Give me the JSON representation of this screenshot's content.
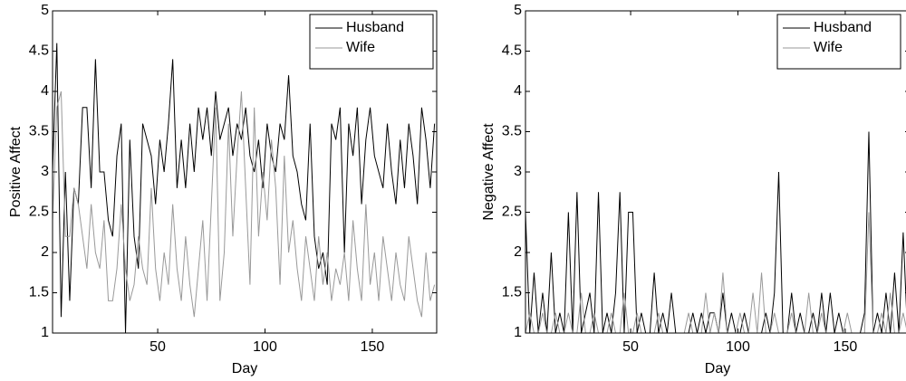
{
  "chart_data": [
    {
      "type": "line",
      "xlabel": "Day",
      "ylabel": "Positive Affect",
      "x": [
        1,
        3,
        5,
        7,
        9,
        11,
        13,
        15,
        17,
        19,
        21,
        23,
        25,
        27,
        29,
        31,
        33,
        35,
        37,
        39,
        41,
        43,
        45,
        47,
        49,
        51,
        53,
        55,
        57,
        59,
        61,
        63,
        65,
        67,
        69,
        71,
        73,
        75,
        77,
        79,
        81,
        83,
        85,
        87,
        89,
        91,
        93,
        95,
        97,
        99,
        101,
        103,
        105,
        107,
        109,
        111,
        113,
        115,
        117,
        119,
        121,
        123,
        125,
        127,
        129,
        131,
        133,
        135,
        137,
        139,
        141,
        143,
        145,
        147,
        149,
        151,
        153,
        155,
        157,
        159,
        161,
        163,
        165,
        167,
        169,
        171,
        173,
        175,
        177,
        179
      ],
      "xlim": [
        1,
        180
      ],
      "ylim": [
        1,
        5
      ],
      "xticks": [
        50,
        100,
        150
      ],
      "yticks": [
        1,
        1.5,
        2,
        2.5,
        3,
        3.5,
        4,
        4.5,
        5
      ],
      "legend": "upper right",
      "series": [
        {
          "name": "Husband",
          "color": "#000000",
          "values": [
            3.0,
            4.6,
            1.2,
            3.0,
            1.4,
            2.8,
            2.6,
            3.8,
            3.8,
            2.8,
            4.4,
            3.0,
            3.0,
            2.4,
            2.2,
            3.2,
            3.6,
            1.0,
            3.4,
            2.2,
            1.8,
            3.6,
            3.4,
            3.2,
            2.6,
            3.4,
            3.0,
            3.6,
            4.4,
            2.8,
            3.4,
            2.8,
            3.6,
            3.0,
            3.8,
            3.4,
            3.8,
            3.2,
            4.0,
            3.4,
            3.6,
            3.8,
            3.2,
            3.6,
            3.4,
            3.8,
            3.2,
            3.0,
            3.4,
            2.8,
            3.6,
            3.2,
            3.0,
            3.6,
            3.4,
            4.2,
            3.2,
            3.0,
            2.6,
            2.4,
            3.6,
            2.2,
            1.8,
            2.0,
            1.6,
            3.6,
            3.4,
            3.8,
            2.0,
            3.6,
            3.2,
            3.8,
            2.6,
            3.4,
            3.8,
            3.2,
            3.0,
            2.8,
            3.6,
            3.0,
            2.6,
            3.4,
            2.8,
            3.6,
            3.2,
            2.6,
            3.8,
            3.4,
            2.8,
            3.6
          ]
        },
        {
          "name": "Wife",
          "color": "#999999",
          "values": [
            2.4,
            3.8,
            4.0,
            2.2,
            2.2,
            2.8,
            2.6,
            2.2,
            1.8,
            2.6,
            2.0,
            1.8,
            2.4,
            1.4,
            1.4,
            1.8,
            2.6,
            1.8,
            1.4,
            1.6,
            2.2,
            1.8,
            1.6,
            2.8,
            1.8,
            1.4,
            2.0,
            1.6,
            2.6,
            1.8,
            1.4,
            2.2,
            1.6,
            1.2,
            1.8,
            2.4,
            1.4,
            2.6,
            3.8,
            1.4,
            2.0,
            3.6,
            2.2,
            3.2,
            4.0,
            2.8,
            1.6,
            3.8,
            2.2,
            3.0,
            2.4,
            3.4,
            2.8,
            1.6,
            3.2,
            2.0,
            2.4,
            1.8,
            1.4,
            2.2,
            1.8,
            1.4,
            2.2,
            1.6,
            2.0,
            1.4,
            1.8,
            1.6,
            2.0,
            1.4,
            2.4,
            1.8,
            1.4,
            2.6,
            1.6,
            2.0,
            1.4,
            2.2,
            1.8,
            1.4,
            2.0,
            1.6,
            1.4,
            2.2,
            1.8,
            1.4,
            1.2,
            2.0,
            1.4,
            1.6
          ]
        }
      ]
    },
    {
      "type": "line",
      "xlabel": "Day",
      "ylabel": "Negative Affect",
      "x": [
        1,
        3,
        5,
        7,
        9,
        11,
        13,
        15,
        17,
        19,
        21,
        23,
        25,
        27,
        29,
        31,
        33,
        35,
        37,
        39,
        41,
        43,
        45,
        47,
        49,
        51,
        53,
        55,
        57,
        59,
        61,
        63,
        65,
        67,
        69,
        71,
        73,
        75,
        77,
        79,
        81,
        83,
        85,
        87,
        89,
        91,
        93,
        95,
        97,
        99,
        101,
        103,
        105,
        107,
        109,
        111,
        113,
        115,
        117,
        119,
        121,
        123,
        125,
        127,
        129,
        131,
        133,
        135,
        137,
        139,
        141,
        143,
        145,
        147,
        149,
        151,
        153,
        155,
        157,
        159,
        161,
        163,
        165,
        167,
        169,
        171,
        173,
        175,
        177,
        179
      ],
      "xlim": [
        1,
        180
      ],
      "ylim": [
        1,
        5
      ],
      "xticks": [
        50,
        100,
        150
      ],
      "yticks": [
        1,
        1.5,
        2,
        2.5,
        3,
        3.5,
        4,
        4.5,
        5
      ],
      "legend": "upper right",
      "series": [
        {
          "name": "Husband",
          "color": "#000000",
          "values": [
            2.5,
            1.0,
            1.75,
            1.0,
            1.5,
            1.0,
            2.0,
            1.0,
            1.25,
            1.0,
            2.5,
            1.0,
            2.75,
            1.0,
            1.25,
            1.5,
            1.0,
            2.75,
            1.0,
            1.25,
            1.0,
            1.5,
            2.75,
            1.0,
            2.5,
            2.5,
            1.0,
            1.25,
            1.0,
            1.0,
            1.75,
            1.0,
            1.25,
            1.0,
            1.5,
            1.0,
            1.0,
            1.0,
            1.0,
            1.25,
            1.0,
            1.25,
            1.0,
            1.25,
            1.25,
            1.0,
            1.5,
            1.0,
            1.25,
            1.0,
            1.0,
            1.25,
            1.0,
            1.0,
            1.0,
            1.0,
            1.25,
            1.0,
            1.5,
            3.0,
            1.0,
            1.0,
            1.5,
            1.0,
            1.25,
            1.0,
            1.0,
            1.25,
            1.0,
            1.5,
            1.0,
            1.5,
            1.0,
            1.25,
            1.0,
            1.0,
            1.0,
            1.0,
            1.0,
            1.25,
            3.5,
            1.0,
            1.25,
            1.0,
            1.5,
            1.0,
            1.75,
            1.0,
            2.25,
            1.0
          ]
        },
        {
          "name": "Wife",
          "color": "#999999",
          "values": [
            1.0,
            1.25,
            1.0,
            1.0,
            1.25,
            1.0,
            1.0,
            1.25,
            1.0,
            1.0,
            1.25,
            1.0,
            1.0,
            1.5,
            1.0,
            1.0,
            1.25,
            1.0,
            1.0,
            1.0,
            1.25,
            1.0,
            1.0,
            1.5,
            1.0,
            1.0,
            1.25,
            1.0,
            1.0,
            1.0,
            1.0,
            1.25,
            1.0,
            1.0,
            1.0,
            1.0,
            1.0,
            1.0,
            1.25,
            1.0,
            1.0,
            1.0,
            1.5,
            1.0,
            1.25,
            1.0,
            1.75,
            1.0,
            1.0,
            1.0,
            1.25,
            1.0,
            1.0,
            1.5,
            1.0,
            1.75,
            1.0,
            1.0,
            1.25,
            1.0,
            1.0,
            1.0,
            1.25,
            1.0,
            1.0,
            1.0,
            1.5,
            1.0,
            1.0,
            1.25,
            1.0,
            1.0,
            1.0,
            1.0,
            1.0,
            1.25,
            1.0,
            1.0,
            1.0,
            1.0,
            2.5,
            1.0,
            1.0,
            1.25,
            1.0,
            1.5,
            1.0,
            1.0,
            1.25,
            1.0
          ]
        }
      ]
    }
  ]
}
